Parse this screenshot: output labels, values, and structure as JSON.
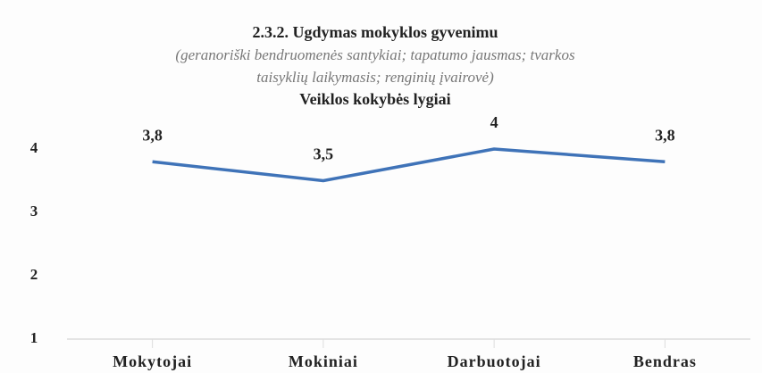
{
  "chart_data": {
    "type": "line",
    "title": "2.3.2. Ugdymas mokyklos gyvenimu",
    "subtitle": [
      "(geranoriški bendruomenės santykiai; tapatumo jausmas; tvarkos",
      "taisyklių laikymasis; renginių įvairovė)"
    ],
    "y_title": "Veiklos kokybės lygiai",
    "categories": [
      "Mokytojai",
      "Mokiniai",
      "Darbuotojai",
      "Bendras"
    ],
    "values": [
      3.8,
      3.5,
      4,
      3.8
    ],
    "value_labels": [
      "3,8",
      "3,5",
      "4",
      "3,8"
    ],
    "color": "#3f73b8",
    "ylim": [
      1,
      4.2
    ],
    "yticks": [
      1,
      2,
      3,
      4
    ],
    "grid": false
  }
}
